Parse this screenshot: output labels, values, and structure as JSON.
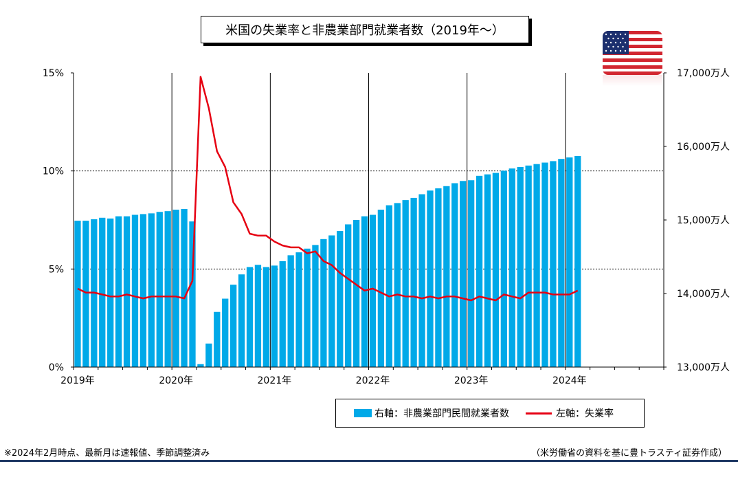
{
  "header": {
    "title": "米国の失業率と非農業部門就業者数（2019年〜）"
  },
  "flag": {
    "icon": "us-flag-icon"
  },
  "colors": {
    "bar": "#00a9e8",
    "line": "#e60012"
  },
  "legend": {
    "bar_label": "右軸：非農業部門民間就業者数",
    "line_label": "左軸：失業率"
  },
  "footer": {
    "note": "※2024年2月時点、最新月は速報値、季節調整済み",
    "source": "（米労働省の資料を基に豊トラスティ証券作成）"
  },
  "chart_data": {
    "type": "bar+line",
    "x_start": "2019-01",
    "x_end": "2024-12",
    "x_ticks": [
      "2019年",
      "2020年",
      "2021年",
      "2022年",
      "2023年",
      "2024年"
    ],
    "y_left": {
      "ylim": [
        0,
        15
      ],
      "ticks": [
        0,
        5,
        10,
        15
      ],
      "tick_labels": [
        "0%",
        "5%",
        "10%",
        "15%"
      ]
    },
    "y_right": {
      "ylim": [
        13000,
        17000
      ],
      "ticks": [
        13000,
        14000,
        15000,
        16000,
        17000
      ],
      "tick_labels": [
        "13,000万人",
        "14,000万人",
        "15,000万人",
        "16,000万人",
        "17,000万人"
      ]
    },
    "grid": {
      "horizontal_dashed_at_left": [
        5,
        10
      ],
      "vertical_at_years": true
    },
    "series": [
      {
        "name": "右軸：非農業部門民間就業者数",
        "type": "bar",
        "axis": "right",
        "values": [
          14990,
          14990,
          15010,
          15030,
          15020,
          15050,
          15050,
          15070,
          15080,
          15090,
          15110,
          15120,
          15140,
          15150,
          14980,
          13040,
          13320,
          13750,
          13930,
          14120,
          14260,
          14360,
          14390,
          14360,
          14380,
          14440,
          14520,
          14560,
          14610,
          14660,
          14740,
          14790,
          14850,
          14940,
          15000,
          15050,
          15070,
          15140,
          15200,
          15230,
          15270,
          15300,
          15350,
          15400,
          15430,
          15460,
          15500,
          15530,
          15540,
          15600,
          15620,
          15640,
          15670,
          15700,
          15720,
          15740,
          15760,
          15780,
          15800,
          15830,
          15850,
          15870
        ]
      },
      {
        "name": "左軸：失業率",
        "type": "line",
        "axis": "left",
        "values": [
          4.0,
          3.8,
          3.8,
          3.7,
          3.6,
          3.6,
          3.7,
          3.6,
          3.5,
          3.6,
          3.6,
          3.6,
          3.6,
          3.5,
          4.4,
          14.8,
          13.2,
          11.0,
          10.2,
          8.4,
          7.8,
          6.8,
          6.7,
          6.7,
          6.4,
          6.2,
          6.1,
          6.1,
          5.8,
          5.9,
          5.4,
          5.2,
          4.8,
          4.5,
          4.2,
          3.9,
          4.0,
          3.8,
          3.6,
          3.7,
          3.6,
          3.6,
          3.5,
          3.6,
          3.5,
          3.6,
          3.6,
          3.5,
          3.4,
          3.6,
          3.5,
          3.4,
          3.7,
          3.6,
          3.5,
          3.8,
          3.8,
          3.8,
          3.7,
          3.7,
          3.7,
          3.9
        ]
      }
    ]
  }
}
